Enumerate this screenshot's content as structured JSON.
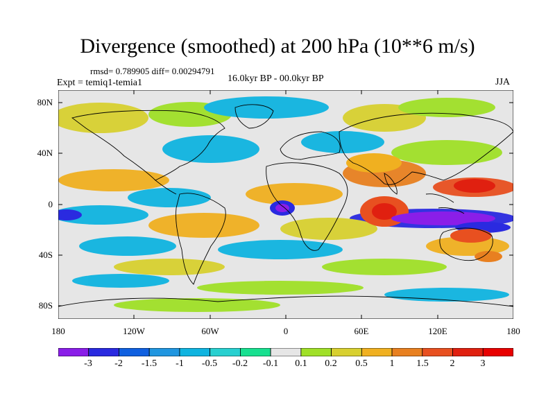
{
  "title": "Divergence (smoothed) at 200 hPa (10**6 m/s)",
  "stats": "rmsd= 0.789905 diff= 0.00294791",
  "experiment": "Expt = temiq1-temia1",
  "period": "16.0kyr BP - 00.0kyr BP",
  "season": "JJA",
  "axes": {
    "y_labels": [
      "80N",
      "40N",
      "0",
      "40S",
      "80S"
    ],
    "x_labels": [
      "180",
      "120W",
      "60W",
      "0",
      "60E",
      "120E",
      "180"
    ]
  },
  "colorbar": {
    "labels": [
      "-3",
      "-2",
      "-1.5",
      "-1",
      "-0.5",
      "-0.2",
      "-0.1",
      "0.1",
      "0.2",
      "0.5",
      "1",
      "1.5",
      "2",
      "3"
    ],
    "colors": [
      "#8a1ee8",
      "#2a2ae0",
      "#1060e0",
      "#2096e0",
      "#10b4e0",
      "#28d0d0",
      "#18e090",
      "#e6e6e6",
      "#a0e028",
      "#d8d030",
      "#f0b020",
      "#e88020",
      "#e85020",
      "#e02010",
      "#e80000"
    ]
  },
  "colors": {
    "land_line": "#000000",
    "background": "#e6e6e6"
  }
}
